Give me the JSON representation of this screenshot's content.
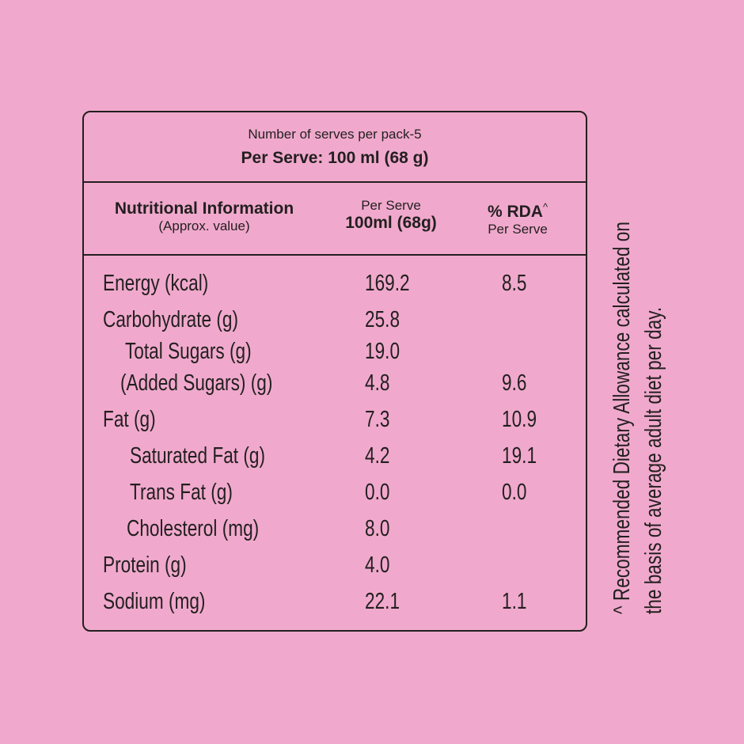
{
  "header": {
    "serves_per_pack": "Number of serves per pack-5",
    "per_serve": "Per Serve: 100 ml (68 g)"
  },
  "columns": {
    "nutri_title": "Nutritional Information",
    "nutri_sub": "(Approx. value)",
    "serve_top": "Per Serve",
    "serve_bottom": "100ml (68g)",
    "rda_title": "% RDA",
    "rda_mark": "^",
    "rda_sub": "Per Serve"
  },
  "rows": [
    {
      "name": "Energy (kcal)",
      "value": "169.2",
      "rda": "8.5"
    },
    {
      "name": "Carbohydrate (g)",
      "value": "25.8",
      "rda": ""
    },
    {
      "name": "Total Sugars (g)",
      "value": "19.0",
      "rda": ""
    },
    {
      "name": "(Added Sugars) (g)",
      "value": "4.8",
      "rda": "9.6"
    },
    {
      "name": "Fat (g)",
      "value": "7.3",
      "rda": "10.9"
    },
    {
      "name": "Saturated Fat (g)",
      "value": "4.2",
      "rda": "19.1"
    },
    {
      "name": "Trans Fat (g)",
      "value": "0.0",
      "rda": "0.0"
    },
    {
      "name": "Cholesterol (mg)",
      "value": "8.0",
      "rda": ""
    },
    {
      "name": "Protein (g)",
      "value": "4.0",
      "rda": ""
    },
    {
      "name": "Sodium (mg)",
      "value": "22.1",
      "rda": "1.1"
    }
  ],
  "footnote": {
    "line1": "^ Recommended Dietary Allowance calculated on",
    "line2": "the basis of average adult diet per day."
  },
  "colors": {
    "background": "#f0a9cc",
    "ink": "#231f20"
  }
}
